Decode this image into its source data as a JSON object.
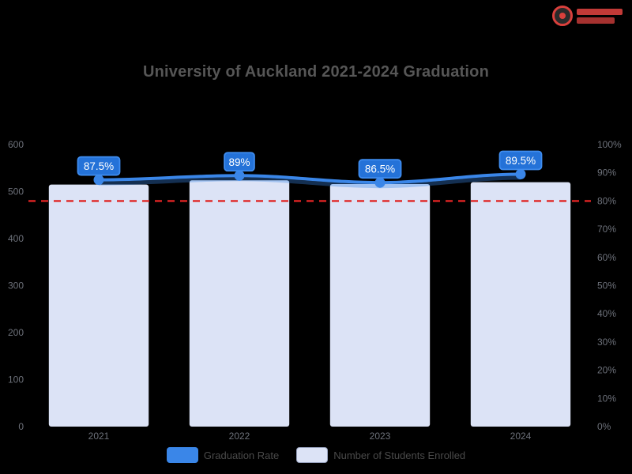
{
  "logo": {
    "accent": "#d9403c"
  },
  "colors": {
    "background": "#000000",
    "title_text": "#565656",
    "axis_text": "#6d717a",
    "legend_text": "#4a4a4a"
  },
  "chart_data": {
    "type": "bar",
    "combo": "bar+line",
    "title": "University of Auckland 2021-2024 Graduation",
    "categories": [
      "2021",
      "2022",
      "2023",
      "2024"
    ],
    "series": [
      {
        "name": "Graduation Rate",
        "type": "line",
        "axis": "right",
        "unit": "%",
        "values": [
          87.5,
          89,
          86.5,
          89.5
        ],
        "labels": [
          "87.5%",
          "89%",
          "86.5%",
          "89.5%"
        ],
        "color": "#3a86e8"
      },
      {
        "name": "Number of Students Enrolled",
        "type": "bar",
        "axis": "left",
        "values": [
          515,
          524,
          516,
          520
        ],
        "color": "#dce3f6"
      }
    ],
    "left_axis": {
      "min": 0,
      "max": 600,
      "tick_labels": [
        "600",
        "500",
        "400",
        "300",
        "200",
        "100",
        "0"
      ]
    },
    "right_axis": {
      "min": 0,
      "max": 100,
      "tick_labels": [
        "100%",
        "90%",
        "80%",
        "70%",
        "60%",
        "50%",
        "40%",
        "30%",
        "20%",
        "10%",
        "0%"
      ]
    },
    "threshold_line": {
      "axis": "right",
      "value": 80,
      "color": "#e02424",
      "style": "dashed"
    },
    "label_bubble": {
      "fill": "#2472d8",
      "stroke": "#3f8df0",
      "text_color": "#ffffff"
    },
    "legend_position": "bottom",
    "grid": false
  }
}
